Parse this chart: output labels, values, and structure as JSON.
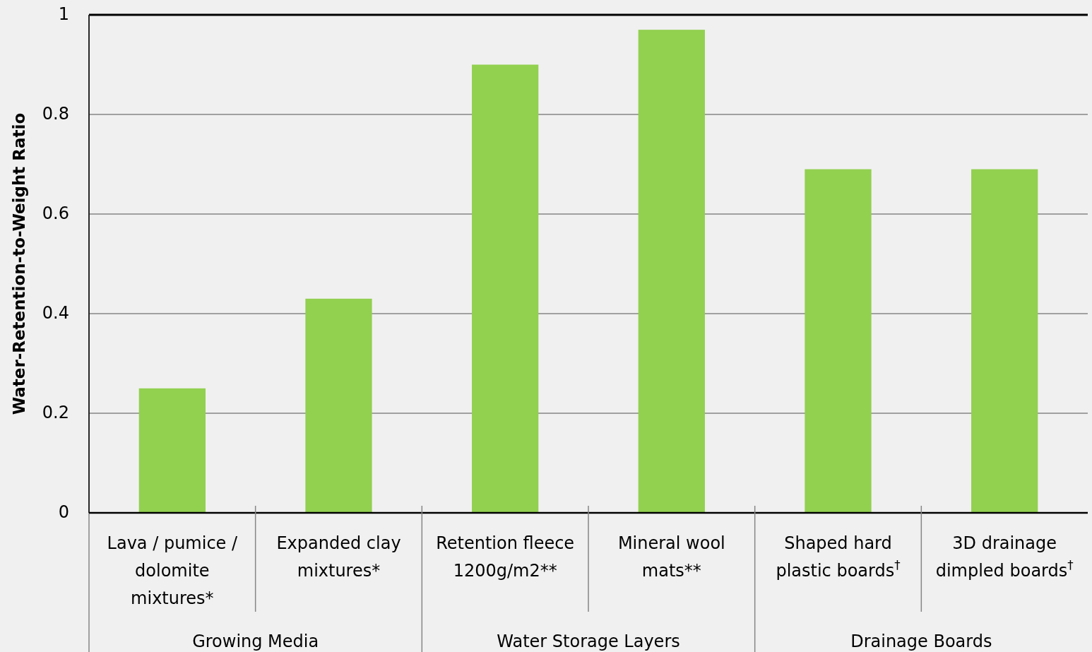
{
  "chart_data": {
    "type": "bar",
    "ylabel": "Water-Retention-to-Weight Ratio",
    "categories": [
      "Lava / pumice / dolomite mixtures*",
      "Expanded clay mixtures*",
      "Retention fleece 1200g/m2**",
      "Mineral wool mats**",
      "Shaped hard plastic boards$^{†}$",
      "3D drainage dimpled boards$^{†}$"
    ],
    "values": [
      0.25,
      0.43,
      0.9,
      0.97,
      0.69,
      0.69
    ],
    "color": "#92d050",
    "ylim": [
      0,
      1
    ],
    "yticks": [
      0,
      0.2,
      0.4,
      0.6,
      0.8,
      1
    ],
    "grid": "y",
    "annotations": [
      "Growing Media",
      "Water Storage Layers",
      "Drainage Boards"
    ]
  }
}
